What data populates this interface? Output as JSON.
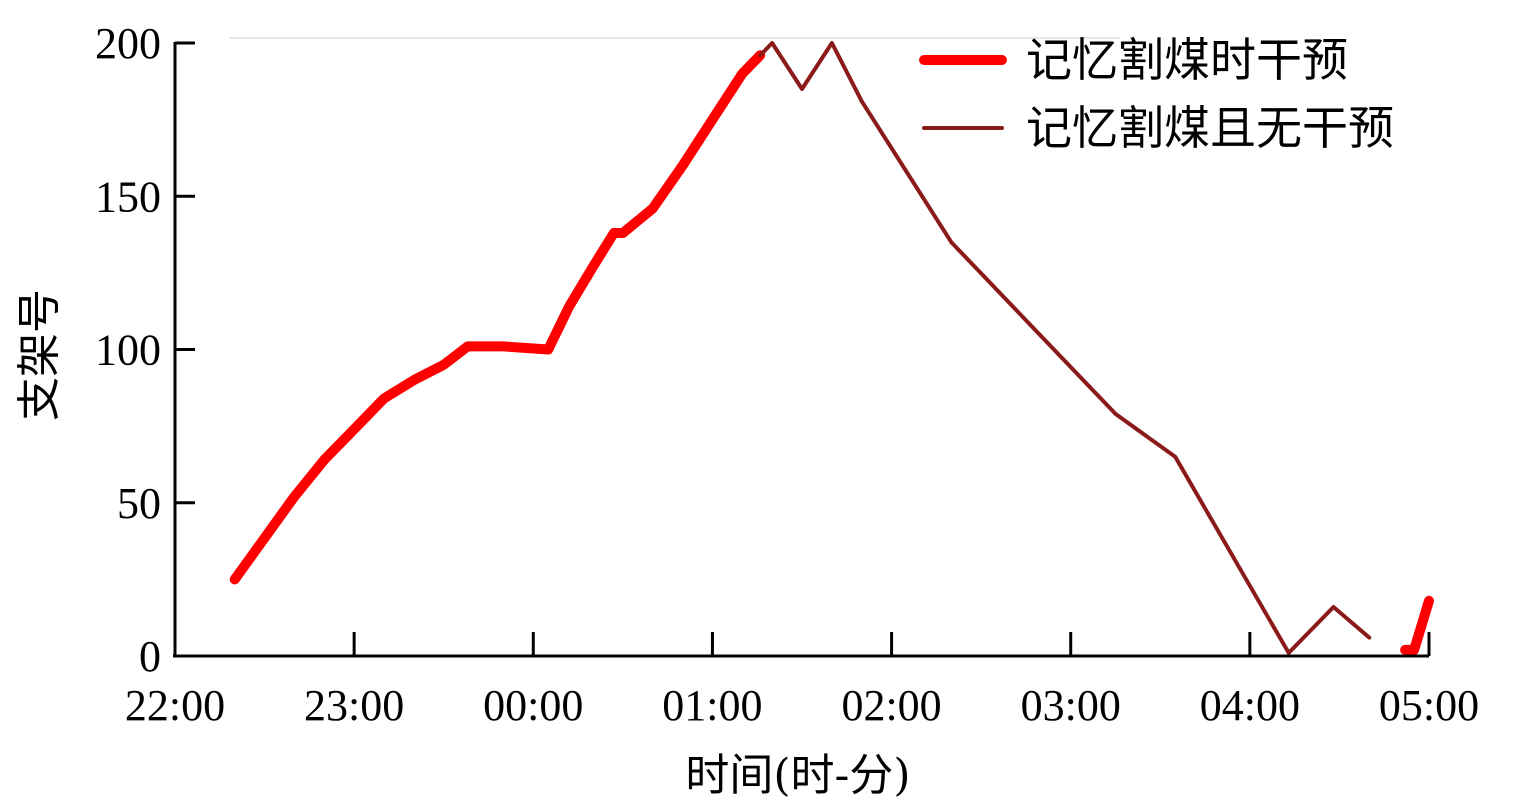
{
  "chart_data": {
    "type": "line",
    "title": "",
    "xlabel": "时间(时-分)",
    "ylabel": "支架号",
    "x_ticks": [
      "22:00",
      "23:00",
      "00:00",
      "01:00",
      "02:00",
      "03:00",
      "04:00",
      "05:00"
    ],
    "y_ticks": [
      0,
      50,
      100,
      150,
      200
    ],
    "xlim_hours": [
      22,
      29
    ],
    "ylim": [
      0,
      200
    ],
    "grid": false,
    "legend_position": "top-right",
    "series": [
      {
        "name": "记忆割煤时干预",
        "color": "#ff0000",
        "segments": [
          [
            {
              "x": "22:20",
              "y": 25
            },
            {
              "x": "22:40",
              "y": 52
            },
            {
              "x": "22:50",
              "y": 64
            },
            {
              "x": "23:00",
              "y": 74
            },
            {
              "x": "23:10",
              "y": 84
            },
            {
              "x": "23:20",
              "y": 90
            },
            {
              "x": "23:30",
              "y": 95
            },
            {
              "x": "23:38",
              "y": 101
            },
            {
              "x": "23:50",
              "y": 101
            },
            {
              "x": "00:05",
              "y": 100
            },
            {
              "x": "00:12",
              "y": 114
            },
            {
              "x": "00:20",
              "y": 127
            },
            {
              "x": "00:27",
              "y": 138
            },
            {
              "x": "00:30",
              "y": 138
            },
            {
              "x": "00:40",
              "y": 146
            },
            {
              "x": "00:50",
              "y": 160
            },
            {
              "x": "01:00",
              "y": 175
            },
            {
              "x": "01:10",
              "y": 190
            },
            {
              "x": "01:16",
              "y": 196
            }
          ],
          [
            {
              "x": "04:52",
              "y": 2
            },
            {
              "x": "04:55",
              "y": 2
            },
            {
              "x": "05:00",
              "y": 18
            }
          ]
        ]
      },
      {
        "name": "记忆割煤且无干预",
        "color": "#8b1a1a",
        "segments": [
          [
            {
              "x": "01:16",
              "y": 196
            },
            {
              "x": "01:20",
              "y": 200
            },
            {
              "x": "01:30",
              "y": 185
            },
            {
              "x": "01:40",
              "y": 200
            },
            {
              "x": "01:50",
              "y": 181
            },
            {
              "x": "02:20",
              "y": 135
            },
            {
              "x": "03:15",
              "y": 79
            },
            {
              "x": "03:35",
              "y": 65
            },
            {
              "x": "04:13",
              "y": 1
            },
            {
              "x": "04:28",
              "y": 16
            },
            {
              "x": "04:40",
              "y": 6
            }
          ]
        ]
      }
    ]
  }
}
